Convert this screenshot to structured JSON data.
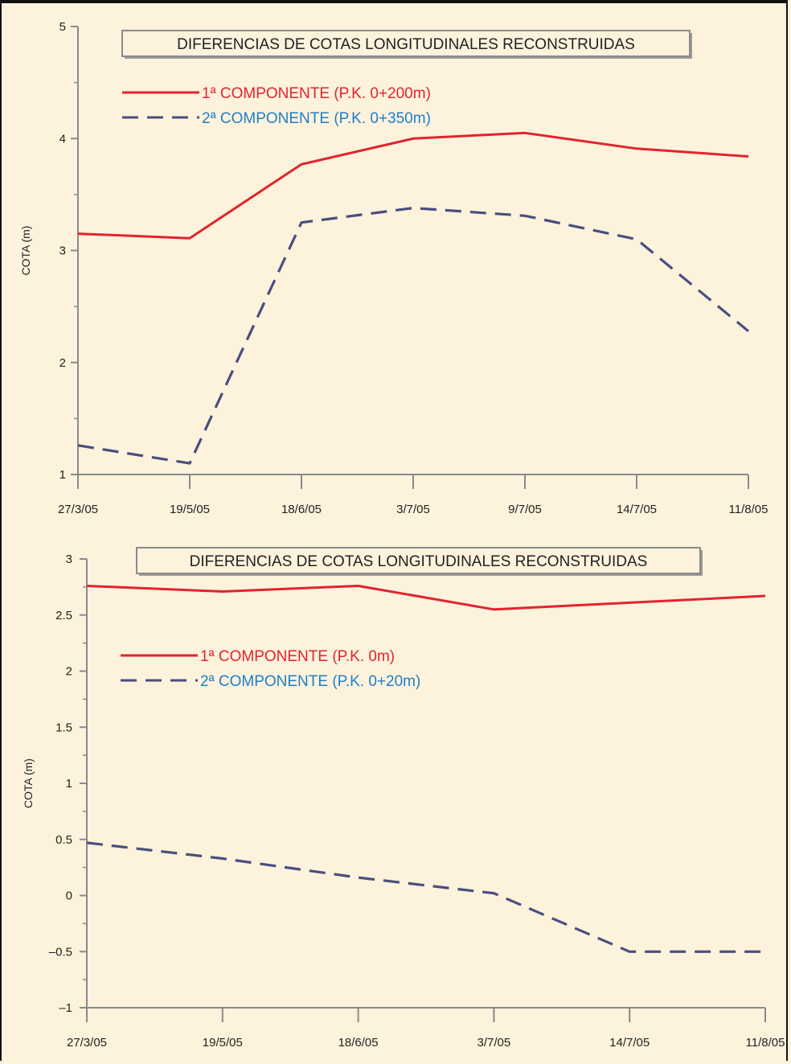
{
  "chart_data": [
    {
      "type": "line",
      "title": "DIFERENCIAS DE COTAS LONGITUDINALES RECONSTRUIDAS",
      "xlabel": "",
      "ylabel": "COTA (m)",
      "categories": [
        "27/3/05",
        "19/5/05",
        "18/6/05",
        "3/7/05",
        "9/7/05",
        "14/7/05",
        "11/8/05"
      ],
      "ylim": [
        1,
        5
      ],
      "yticks": [
        "1",
        "2",
        "3",
        "4",
        "5"
      ],
      "ytick_values": [
        1,
        2,
        3,
        4,
        5
      ],
      "grid": false,
      "legend_position": "top-left",
      "series": [
        {
          "name": "1ª COMPONENTE (P.K. 0+200m)",
          "values": [
            3.15,
            3.11,
            3.77,
            4.0,
            4.05,
            3.91,
            3.84
          ],
          "color": "#e0242f",
          "style": "solid"
        },
        {
          "name": "2ª COMPONENTE (P.K. 0+350m)",
          "values": [
            1.26,
            1.1,
            3.25,
            3.38,
            3.31,
            3.1,
            2.28
          ],
          "color": "#4a4e7e",
          "style": "dashed"
        }
      ]
    },
    {
      "type": "line",
      "title": "DIFERENCIAS DE COTAS LONGITUDINALES RECONSTRUIDAS",
      "xlabel": "",
      "ylabel": "COTA (m)",
      "categories": [
        "27/3/05",
        "19/5/05",
        "18/6/05",
        "3/7/05",
        "14/7/05",
        "11/8/05"
      ],
      "ylim": [
        -1,
        3
      ],
      "yticks": [
        "3",
        "2.5",
        "2",
        "1.5",
        "1",
        "0.5",
        "0",
        "–0.5",
        "–1"
      ],
      "ytick_values": [
        3,
        2.5,
        2,
        1.5,
        1,
        0.5,
        0,
        -0.5,
        -1
      ],
      "grid": false,
      "legend_position": "upper-left",
      "series": [
        {
          "name": "1ª COMPONENTE (P.K. 0m)",
          "values": [
            2.76,
            2.71,
            2.76,
            2.55,
            2.61,
            2.67
          ],
          "color": "#e0242f",
          "style": "solid"
        },
        {
          "name": "2ª COMPONENTE (P.K. 0+20m)",
          "values": [
            0.47,
            0.33,
            0.16,
            0.02,
            -0.5,
            -0.5
          ],
          "color": "#4a4e7e",
          "style": "dashed"
        }
      ]
    }
  ],
  "legend_text_colors": [
    "#e0242f",
    "#1f7fc6"
  ],
  "axis_color": "#8a8a8a"
}
